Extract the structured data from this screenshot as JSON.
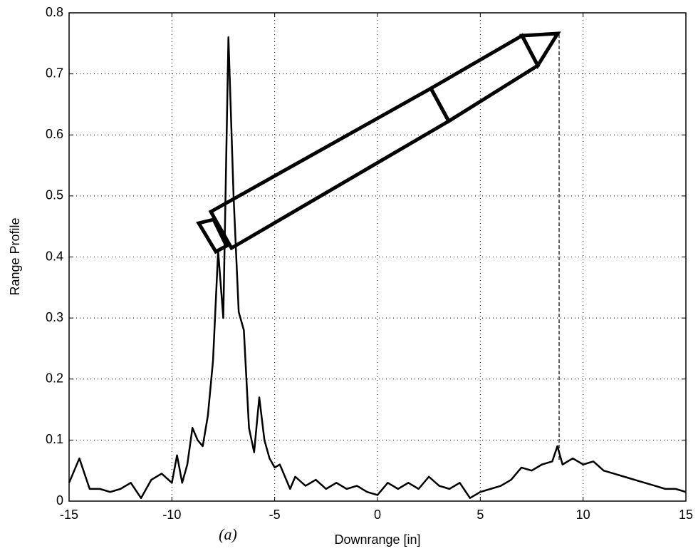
{
  "chart_data": {
    "type": "line",
    "x_label": "Downrange [in]",
    "y_label": "Range Profile",
    "caption": "(a)",
    "x": [
      -15,
      -14.5,
      -14,
      -13.5,
      -13,
      -12.5,
      -12,
      -11.5,
      -11,
      -10.5,
      -10,
      -9.75,
      -9.5,
      -9.25,
      -9,
      -8.75,
      -8.5,
      -8.25,
      -8,
      -7.75,
      -7.5,
      -7.25,
      -7,
      -6.75,
      -6.5,
      -6.25,
      -6,
      -5.75,
      -5.5,
      -5.25,
      -5,
      -4.75,
      -4.5,
      -4.25,
      -4,
      -3.5,
      -3,
      -2.5,
      -2,
      -1.5,
      -1,
      -0.5,
      0,
      0.5,
      1,
      1.5,
      2,
      2.5,
      3,
      3.5,
      4,
      4.5,
      5,
      5.5,
      6,
      6.5,
      7,
      7.5,
      8,
      8.5,
      8.75,
      9,
      9.5,
      10,
      10.5,
      11,
      11.5,
      12,
      12.5,
      13,
      13.5,
      14,
      14.5,
      15
    ],
    "series": [
      {
        "color": "#000000",
        "values": [
          0.03,
          0.07,
          0.02,
          0.02,
          0.015,
          0.02,
          0.03,
          0.005,
          0.035,
          0.045,
          0.03,
          0.075,
          0.03,
          0.06,
          0.12,
          0.1,
          0.09,
          0.14,
          0.23,
          0.41,
          0.3,
          0.76,
          0.5,
          0.31,
          0.28,
          0.12,
          0.08,
          0.17,
          0.1,
          0.07,
          0.055,
          0.06,
          0.04,
          0.02,
          0.04,
          0.025,
          0.035,
          0.02,
          0.03,
          0.02,
          0.025,
          0.015,
          0.01,
          0.03,
          0.02,
          0.03,
          0.02,
          0.04,
          0.025,
          0.02,
          0.03,
          0.005,
          0.015,
          0.02,
          0.025,
          0.035,
          0.055,
          0.05,
          0.06,
          0.065,
          0.09,
          0.06,
          0.07,
          0.06,
          0.065,
          0.05,
          0.045,
          0.04,
          0.035,
          0.03,
          0.025,
          0.02,
          0.02,
          0.015
        ]
      }
    ],
    "xlim": [
      -15,
      15
    ],
    "xticks": [
      -15,
      -10,
      -5,
      0,
      5,
      10,
      15
    ],
    "ylim": [
      0,
      0.8
    ],
    "yticks": [
      0,
      0.1,
      0.2,
      0.3,
      0.4,
      0.5,
      0.6,
      0.7,
      0.8
    ],
    "grid": true
  }
}
